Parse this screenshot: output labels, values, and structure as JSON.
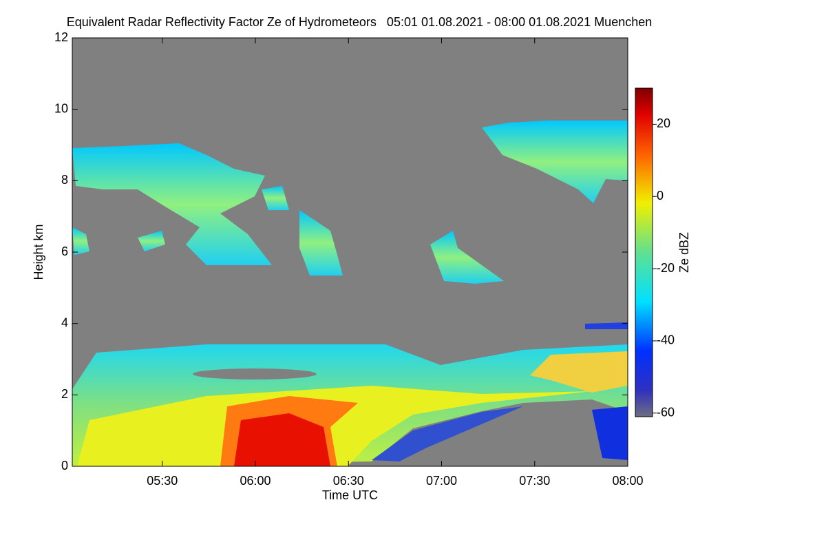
{
  "chart_data": {
    "type": "heatmap",
    "title": "Equivalent Radar Reflectivity Factor Ze of Hydrometeors   05:01 01.08.2021 - 08:00 01.08.2021 Muenchen",
    "x_label": "Time UTC",
    "y_label": "Height km",
    "colorbar_label": "Ze dBZ",
    "xlim": [
      301,
      480
    ],
    "xticks": [
      {
        "value": 330,
        "label": "05:30"
      },
      {
        "value": 360,
        "label": "06:00"
      },
      {
        "value": 390,
        "label": "06:30"
      },
      {
        "value": 420,
        "label": "07:00"
      },
      {
        "value": 450,
        "label": "07:30"
      },
      {
        "value": 480,
        "label": "08:00"
      }
    ],
    "ylim": [
      0,
      12
    ],
    "yticks": [
      0,
      2,
      4,
      6,
      8,
      10,
      12
    ],
    "clim": [
      -61,
      30
    ],
    "cticks": [
      -60,
      -40,
      -20,
      0,
      20
    ],
    "background": "#808080"
  }
}
